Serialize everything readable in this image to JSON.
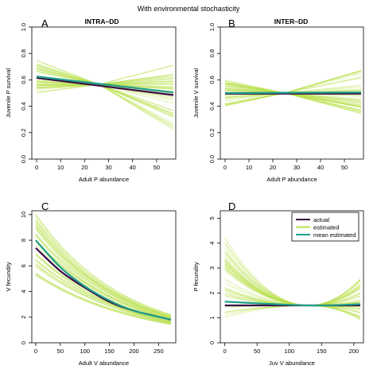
{
  "figure_title": "With environmental stochasticity",
  "legend": {
    "items": [
      {
        "label": "actual",
        "color": "#3b0a45"
      },
      {
        "label": "estimated",
        "color": "#b8e04a"
      },
      {
        "label": "mean estimated",
        "color": "#1f9e89"
      }
    ]
  },
  "colors": {
    "actual": "#3b0a45",
    "estimated": "#b8e04a",
    "mean": "#1f9e89"
  },
  "chart_data": [
    {
      "type": "line",
      "panel": "A",
      "title": "INTRA–DD",
      "xlabel": "Adult P abundance",
      "ylabel": "Juvenile P survival",
      "xlim": [
        -2,
        58
      ],
      "ylim": [
        0,
        1.0
      ],
      "xticks": [
        0,
        10,
        20,
        30,
        40,
        50
      ],
      "yticks": [
        0.0,
        0.2,
        0.4,
        0.6,
        0.8,
        1.0
      ],
      "x": [
        0,
        57
      ],
      "series": [
        {
          "name": "actual",
          "values": [
            0.615,
            0.485
          ]
        },
        {
          "name": "mean estimated",
          "values": [
            0.625,
            0.505
          ]
        }
      ],
      "estimated_band": {
        "pivot_x": 26,
        "pivot_y": 0.565,
        "start_range": [
          0.5,
          0.75
        ],
        "end_range": [
          0.22,
          0.71
        ],
        "n": 40
      }
    },
    {
      "type": "line",
      "panel": "B",
      "title": "INTER–DD",
      "xlabel": "Adult P abundance",
      "ylabel": "Juvenile V survival",
      "xlim": [
        -2,
        58
      ],
      "ylim": [
        0,
        1.0
      ],
      "xticks": [
        0,
        10,
        20,
        30,
        40,
        50
      ],
      "yticks": [
        0.0,
        0.2,
        0.4,
        0.6,
        0.8,
        1.0
      ],
      "x": [
        0,
        57
      ],
      "series": [
        {
          "name": "actual",
          "values": [
            0.495,
            0.495
          ]
        },
        {
          "name": "mean estimated",
          "values": [
            0.5,
            0.505
          ]
        }
      ],
      "estimated_band": {
        "pivot_x": 25,
        "pivot_y": 0.5,
        "start_range": [
          0.4,
          0.6
        ],
        "end_range": [
          0.33,
          0.67
        ],
        "n": 40
      }
    },
    {
      "type": "line",
      "panel": "C",
      "title": "",
      "xlabel": "Adult V abundance",
      "ylabel": "V fecundity",
      "xlim": [
        -8,
        285
      ],
      "ylim": [
        0,
        10.3
      ],
      "xticks": [
        0,
        50,
        100,
        150,
        200,
        250
      ],
      "yticks": [
        0,
        2,
        4,
        6,
        8,
        10
      ],
      "x": [
        0,
        50,
        100,
        150,
        200,
        275
      ],
      "series": [
        {
          "name": "actual",
          "values": [
            7.4,
            5.6,
            4.3,
            3.2,
            2.5,
            1.8
          ]
        },
        {
          "name": "mean estimated",
          "values": [
            8.0,
            5.9,
            4.4,
            3.3,
            2.5,
            1.8
          ]
        }
      ],
      "estimated_band": {
        "start_range": [
          5.2,
          10.3
        ],
        "end_range": [
          1.4,
          2.2
        ],
        "n": 40
      }
    },
    {
      "type": "line",
      "panel": "D",
      "title": "",
      "xlabel": "Juv V abundance",
      "ylabel": "P fecundity",
      "xlim": [
        -7,
        215
      ],
      "ylim": [
        0,
        5.3
      ],
      "xticks": [
        0,
        50,
        100,
        150,
        200
      ],
      "yticks": [
        0,
        1,
        2,
        3,
        4,
        5
      ],
      "x": [
        0,
        130,
        210
      ],
      "series": [
        {
          "name": "actual",
          "values": [
            1.5,
            1.5,
            1.5
          ]
        },
        {
          "name": "mean estimated",
          "values": [
            1.65,
            1.5,
            1.55
          ]
        }
      ],
      "estimated_band": {
        "pivot_x": 130,
        "pivot_y": 1.5,
        "start_range": [
          1.0,
          4.25
        ],
        "end_range": [
          0.85,
          2.6
        ],
        "n": 40
      }
    }
  ]
}
